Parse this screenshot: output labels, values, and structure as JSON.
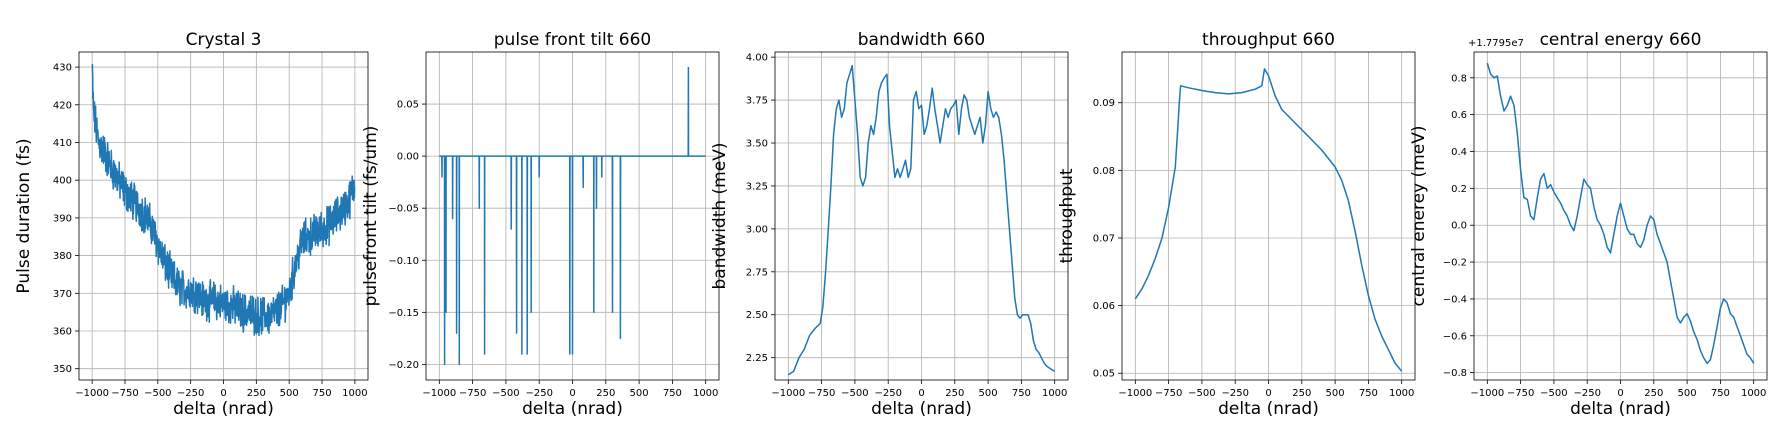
{
  "chart_data": [
    {
      "type": "line",
      "title": "Crystal 3",
      "xlabel": "delta (nrad)",
      "ylabel": "Pulse duration (fs)",
      "xlim": [
        -1100,
        1100
      ],
      "ylim": [
        347,
        434
      ],
      "xticks": [
        -1000,
        -750,
        -500,
        -250,
        0,
        250,
        500,
        750,
        1000
      ],
      "xtick_labels": [
        "−1000",
        "−750",
        "−500",
        "−250",
        "0",
        "250",
        "500",
        "750",
        "1000"
      ],
      "yticks": [
        350,
        360,
        370,
        380,
        390,
        400,
        410,
        420,
        430
      ],
      "ytick_labels": [
        "350",
        "360",
        "370",
        "380",
        "390",
        "400",
        "410",
        "420",
        "430"
      ],
      "grid": true,
      "noisy": true,
      "noise_amp": 4,
      "x": [
        -1000,
        -990,
        -950,
        -900,
        -850,
        -800,
        -750,
        -700,
        -650,
        -600,
        -550,
        -500,
        -450,
        -400,
        -350,
        -300,
        -250,
        -200,
        -150,
        -100,
        -50,
        0,
        50,
        100,
        150,
        200,
        250,
        300,
        350,
        400,
        450,
        500,
        550,
        600,
        650,
        700,
        750,
        800,
        850,
        900,
        950,
        1000
      ],
      "values": [
        430,
        418,
        410,
        407,
        403,
        400,
        397,
        395,
        393,
        391,
        388,
        383,
        378,
        375,
        372,
        371,
        371,
        370,
        368,
        368,
        368,
        367,
        367,
        366,
        365,
        365,
        364,
        364,
        364,
        365,
        367,
        370,
        378,
        384,
        385,
        386,
        387,
        388,
        390,
        392,
        394,
        399
      ],
      "color": "#1f77b4"
    },
    {
      "type": "line",
      "title": "pulse front tilt 660",
      "xlabel": "delta (nrad)",
      "ylabel": "pulsefront tilt (fs/um)",
      "xlim": [
        -1100,
        1100
      ],
      "ylim": [
        -0.215,
        0.1
      ],
      "xticks": [
        -1000,
        -750,
        -500,
        -250,
        0,
        250,
        500,
        750,
        1000
      ],
      "xtick_labels": [
        "−1000",
        "−750",
        "−500",
        "−250",
        "0",
        "250",
        "500",
        "750",
        "1000"
      ],
      "yticks": [
        -0.2,
        -0.15,
        -0.1,
        -0.05,
        0,
        0.05
      ],
      "ytick_labels": [
        "−0.20",
        "−0.15",
        "−0.10",
        "−0.05",
        "0.00",
        "0.05"
      ],
      "grid": true,
      "baseline": 0,
      "x": [
        -1000,
        1000
      ],
      "values": [
        0,
        0
      ],
      "spikes": [
        {
          "x": -980,
          "y": -0.02
        },
        {
          "x": -960,
          "y": -0.2
        },
        {
          "x": -950,
          "y": -0.15
        },
        {
          "x": -900,
          "y": -0.06
        },
        {
          "x": -870,
          "y": -0.17
        },
        {
          "x": -850,
          "y": -0.2
        },
        {
          "x": -700,
          "y": -0.05
        },
        {
          "x": -660,
          "y": -0.19
        },
        {
          "x": -460,
          "y": -0.07
        },
        {
          "x": -420,
          "y": -0.17
        },
        {
          "x": -380,
          "y": -0.19
        },
        {
          "x": -340,
          "y": -0.19
        },
        {
          "x": -310,
          "y": -0.15
        },
        {
          "x": -250,
          "y": -0.02
        },
        {
          "x": -20,
          "y": -0.19
        },
        {
          "x": 0,
          "y": -0.19
        },
        {
          "x": 80,
          "y": -0.03
        },
        {
          "x": 160,
          "y": -0.15
        },
        {
          "x": 180,
          "y": -0.05
        },
        {
          "x": 220,
          "y": -0.02
        },
        {
          "x": 300,
          "y": -0.15
        },
        {
          "x": 360,
          "y": -0.175
        },
        {
          "x": 870,
          "y": 0.085
        }
      ],
      "color": "#1f77b4"
    },
    {
      "type": "line",
      "title": "bandwidth 660",
      "xlabel": "delta (nrad)",
      "ylabel": "bandwidth (meV)",
      "xlim": [
        -1100,
        1100
      ],
      "ylim": [
        2.12,
        4.03
      ],
      "xticks": [
        -1000,
        -750,
        -500,
        -250,
        0,
        250,
        500,
        750,
        1000
      ],
      "xtick_labels": [
        "−1000",
        "−750",
        "−500",
        "−250",
        "0",
        "250",
        "500",
        "750",
        "1000"
      ],
      "yticks": [
        2.25,
        2.5,
        2.75,
        3.0,
        3.25,
        3.5,
        3.75,
        4.0
      ],
      "ytick_labels": [
        "2.25",
        "2.50",
        "2.75",
        "3.00",
        "3.25",
        "3.50",
        "3.75",
        "4.00"
      ],
      "grid": true,
      "x": [
        -1000,
        -960,
        -920,
        -880,
        -840,
        -800,
        -760,
        -740,
        -720,
        -700,
        -680,
        -660,
        -640,
        -620,
        -600,
        -580,
        -560,
        -540,
        -520,
        -500,
        -480,
        -460,
        -440,
        -420,
        -400,
        -380,
        -360,
        -340,
        -320,
        -300,
        -280,
        -260,
        -240,
        -220,
        -200,
        -180,
        -160,
        -140,
        -120,
        -100,
        -80,
        -60,
        -40,
        -20,
        0,
        20,
        40,
        60,
        80,
        100,
        120,
        140,
        160,
        180,
        200,
        220,
        240,
        260,
        280,
        300,
        320,
        340,
        360,
        380,
        400,
        420,
        440,
        460,
        480,
        500,
        520,
        540,
        560,
        580,
        600,
        620,
        640,
        660,
        680,
        700,
        720,
        740,
        760,
        780,
        800,
        820,
        840,
        860,
        880,
        900,
        920,
        940,
        960,
        980,
        1000
      ],
      "values": [
        2.15,
        2.17,
        2.25,
        2.3,
        2.38,
        2.42,
        2.45,
        2.55,
        2.75,
        3.0,
        3.25,
        3.55,
        3.7,
        3.75,
        3.65,
        3.7,
        3.85,
        3.9,
        3.95,
        3.75,
        3.55,
        3.3,
        3.25,
        3.3,
        3.5,
        3.6,
        3.55,
        3.65,
        3.8,
        3.85,
        3.88,
        3.9,
        3.6,
        3.45,
        3.3,
        3.35,
        3.3,
        3.35,
        3.4,
        3.3,
        3.35,
        3.75,
        3.8,
        3.7,
        3.72,
        3.55,
        3.6,
        3.7,
        3.82,
        3.7,
        3.6,
        3.5,
        3.6,
        3.7,
        3.65,
        3.7,
        3.72,
        3.75,
        3.55,
        3.7,
        3.78,
        3.75,
        3.65,
        3.6,
        3.55,
        3.6,
        3.65,
        3.5,
        3.6,
        3.8,
        3.7,
        3.65,
        3.68,
        3.65,
        3.55,
        3.4,
        3.2,
        3.0,
        2.8,
        2.6,
        2.5,
        2.48,
        2.5,
        2.5,
        2.5,
        2.45,
        2.35,
        2.3,
        2.28,
        2.25,
        2.22,
        2.2,
        2.19,
        2.18,
        2.17
      ],
      "color": "#1f77b4"
    },
    {
      "type": "line",
      "title": "throughput 660",
      "xlabel": "delta (nrad)",
      "ylabel": "throughput",
      "xlim": [
        -1100,
        1100
      ],
      "ylim": [
        0.049,
        0.0975
      ],
      "xticks": [
        -1000,
        -750,
        -500,
        -250,
        0,
        250,
        500,
        750,
        1000
      ],
      "xtick_labels": [
        "−1000",
        "−750",
        "−500",
        "−250",
        "0",
        "250",
        "500",
        "750",
        "1000"
      ],
      "yticks": [
        0.05,
        0.06,
        0.07,
        0.08,
        0.09
      ],
      "ytick_labels": [
        "0.05",
        "0.06",
        "0.07",
        "0.08",
        "0.09"
      ],
      "grid": true,
      "x": [
        -1000,
        -950,
        -900,
        -850,
        -800,
        -750,
        -700,
        -680,
        -670,
        -660,
        -600,
        -500,
        -400,
        -300,
        -200,
        -100,
        -50,
        -30,
        0,
        50,
        100,
        200,
        300,
        400,
        500,
        550,
        600,
        650,
        700,
        750,
        800,
        850,
        900,
        950,
        1000
      ],
      "values": [
        0.061,
        0.0625,
        0.0645,
        0.067,
        0.07,
        0.0745,
        0.0805,
        0.0865,
        0.09,
        0.0925,
        0.0922,
        0.0918,
        0.0915,
        0.0913,
        0.0915,
        0.092,
        0.0925,
        0.095,
        0.094,
        0.091,
        0.089,
        0.087,
        0.085,
        0.083,
        0.0805,
        0.0785,
        0.0755,
        0.071,
        0.066,
        0.0615,
        0.058,
        0.0555,
        0.0535,
        0.0515,
        0.0503
      ],
      "color": "#1f77b4"
    },
    {
      "type": "line",
      "title": "central energy 660",
      "offset_text": "+1.7795e7",
      "xlabel": "delta (nrad)",
      "ylabel": "central enerey (meV)",
      "xlim": [
        -1100,
        1100
      ],
      "ylim": [
        -0.84,
        0.94
      ],
      "xticks": [
        -1000,
        -750,
        -500,
        -250,
        0,
        250,
        500,
        750,
        1000
      ],
      "xtick_labels": [
        "−1000",
        "−750",
        "−500",
        "−250",
        "0",
        "250",
        "500",
        "750",
        "1000"
      ],
      "yticks": [
        -0.8,
        -0.6,
        -0.4,
        -0.2,
        0.0,
        0.2,
        0.4,
        0.6,
        0.8
      ],
      "ytick_labels": [
        "−0.8",
        "−0.6",
        "−0.4",
        "−0.2",
        "0.0",
        "0.2",
        "0.4",
        "0.6",
        "0.8"
      ],
      "grid": true,
      "x": [
        -1000,
        -975,
        -950,
        -925,
        -900,
        -875,
        -850,
        -825,
        -800,
        -775,
        -750,
        -725,
        -700,
        -675,
        -650,
        -625,
        -600,
        -575,
        -550,
        -525,
        -500,
        -475,
        -450,
        -425,
        -400,
        -375,
        -350,
        -325,
        -300,
        -275,
        -250,
        -225,
        -200,
        -175,
        -150,
        -125,
        -100,
        -75,
        -50,
        -25,
        0,
        25,
        50,
        75,
        100,
        125,
        150,
        175,
        200,
        225,
        250,
        275,
        300,
        325,
        350,
        375,
        400,
        425,
        450,
        475,
        500,
        525,
        550,
        575,
        600,
        625,
        650,
        675,
        700,
        725,
        750,
        775,
        800,
        825,
        850,
        875,
        900,
        925,
        950,
        975,
        1000
      ],
      "values": [
        0.88,
        0.82,
        0.8,
        0.81,
        0.7,
        0.62,
        0.65,
        0.7,
        0.65,
        0.5,
        0.3,
        0.15,
        0.14,
        0.05,
        0.03,
        0.15,
        0.25,
        0.28,
        0.2,
        0.22,
        0.18,
        0.15,
        0.12,
        0.08,
        0.05,
        0.0,
        -0.03,
        0.05,
        0.15,
        0.25,
        0.22,
        0.2,
        0.1,
        0.03,
        0.0,
        -0.05,
        -0.12,
        -0.15,
        -0.05,
        0.05,
        0.12,
        0.05,
        -0.02,
        -0.05,
        -0.05,
        -0.1,
        -0.12,
        -0.08,
        0.0,
        0.05,
        0.03,
        -0.05,
        -0.1,
        -0.15,
        -0.2,
        -0.3,
        -0.4,
        -0.5,
        -0.53,
        -0.5,
        -0.48,
        -0.52,
        -0.58,
        -0.62,
        -0.68,
        -0.72,
        -0.75,
        -0.73,
        -0.65,
        -0.55,
        -0.45,
        -0.4,
        -0.42,
        -0.48,
        -0.5,
        -0.55,
        -0.6,
        -0.65,
        -0.7,
        -0.72,
        -0.75
      ],
      "color": "#1f77b4"
    }
  ]
}
